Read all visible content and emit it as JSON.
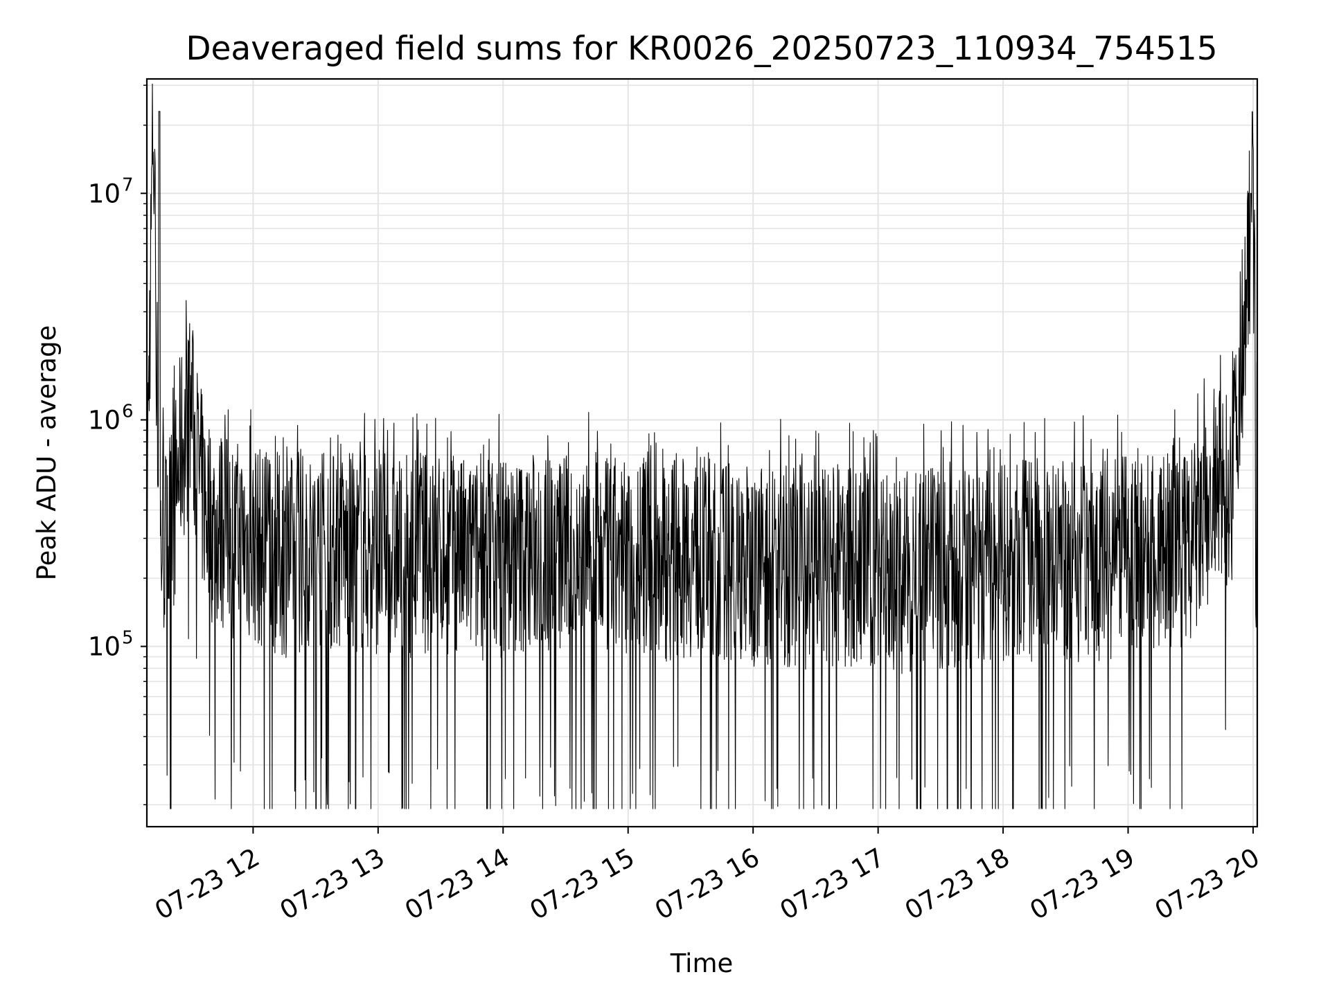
{
  "chart_data": {
    "type": "line",
    "title": "Deaveraged field sums for KR0026_20250723_110934_754515",
    "xlabel": "Time",
    "ylabel": "Peak ADU - average",
    "yscale": "log",
    "grid": true,
    "line_color": "#000000",
    "xlim": [
      "2025-07-23 11:09",
      "2025-07-23 20:02"
    ],
    "ylim": [
      16000,
      32000000
    ],
    "x_ticks": [
      "07-23 12",
      "07-23 13",
      "07-23 14",
      "07-23 15",
      "07-23 16",
      "07-23 17",
      "07-23 18",
      "07-23 19",
      "07-23 20"
    ],
    "y_ticks": [
      {
        "base": "10",
        "exp": "5",
        "value": 100000
      },
      {
        "base": "10",
        "exp": "6",
        "value": 1000000
      },
      {
        "base": "10",
        "exp": "7",
        "value": 10000000
      }
    ],
    "series": [
      {
        "x": [
          "2025-07-23 11:09",
          "2025-07-23 11:12",
          "2025-07-23 11:15",
          "2025-07-23 11:20",
          "2025-07-23 11:25",
          "2025-07-23 11:30",
          "2025-07-23 11:35",
          "2025-07-23 11:40",
          "2025-07-23 11:50",
          "2025-07-23 12:00",
          "2025-07-23 12:15",
          "2025-07-23 12:30",
          "2025-07-23 12:45",
          "2025-07-23 13:00",
          "2025-07-23 13:15",
          "2025-07-23 13:30",
          "2025-07-23 13:45",
          "2025-07-23 14:00",
          "2025-07-23 14:15",
          "2025-07-23 14:30",
          "2025-07-23 14:45",
          "2025-07-23 15:00",
          "2025-07-23 15:15",
          "2025-07-23 15:30",
          "2025-07-23 15:45",
          "2025-07-23 16:00",
          "2025-07-23 16:15",
          "2025-07-23 16:30",
          "2025-07-23 16:45",
          "2025-07-23 17:00",
          "2025-07-23 17:15",
          "2025-07-23 17:30",
          "2025-07-23 17:45",
          "2025-07-23 18:00",
          "2025-07-23 18:15",
          "2025-07-23 18:30",
          "2025-07-23 18:45",
          "2025-07-23 19:00",
          "2025-07-23 19:15",
          "2025-07-23 19:30",
          "2025-07-23 19:40",
          "2025-07-23 19:50",
          "2025-07-23 20:00",
          "2025-07-23 20:02"
        ],
        "y": [
          400000,
          23000000,
          300000,
          280000,
          700000,
          1100000,
          500000,
          350000,
          300000,
          280000,
          250000,
          270000,
          260000,
          260000,
          250000,
          260000,
          240000,
          250000,
          260000,
          250000,
          240000,
          250000,
          240000,
          250000,
          240000,
          230000,
          230000,
          220000,
          220000,
          220000,
          210000,
          220000,
          220000,
          230000,
          240000,
          240000,
          240000,
          250000,
          260000,
          270000,
          400000,
          550000,
          10000000,
          600000
        ]
      }
    ]
  }
}
